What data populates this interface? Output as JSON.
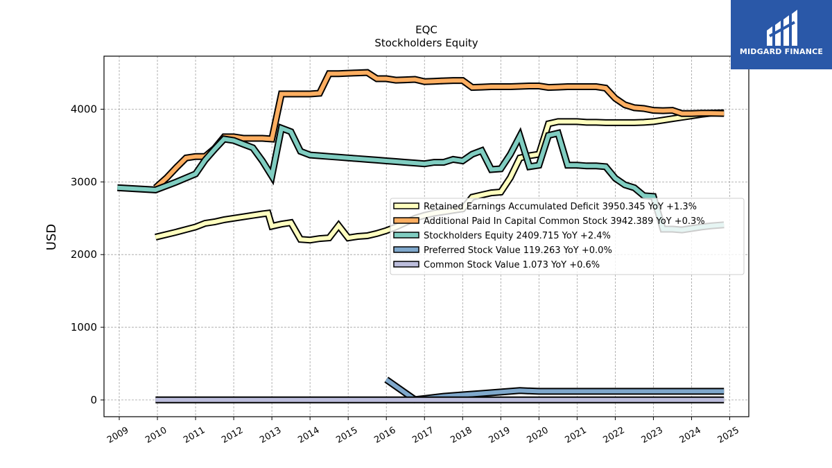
{
  "brand": {
    "name": "MIDGARD FINANCE",
    "color": "#2a58a8",
    "icon": "midgard-logo-icon"
  },
  "chart_data": {
    "type": "line",
    "title": "EQC",
    "subtitle": "Stockholders  Equity",
    "ylabel": "USD",
    "xlabel": "",
    "xlim": [
      2008.6,
      2025.5
    ],
    "ylim": [
      -230,
      4730
    ],
    "yticks": [
      0,
      1000,
      2000,
      3000,
      4000
    ],
    "xticks": [
      "2009",
      "2010",
      "2011",
      "2012",
      "2013",
      "2014",
      "2015",
      "2016",
      "2017",
      "2018",
      "2019",
      "2020",
      "2021",
      "2022",
      "2023",
      "2024",
      "2025"
    ],
    "grid": true,
    "legend_position": "center-right",
    "series": [
      {
        "name": "Retained Earnings Accumulated Deficit",
        "legend": "Retained Earnings Accumulated Deficit  3950.345 YoY +1.3%",
        "color": "#ffffbf",
        "x": [
          2009.95,
          2010.5,
          2011,
          2011.25,
          2011.5,
          2011.75,
          2012,
          2012.25,
          2012.5,
          2012.75,
          2012.9,
          2013.0,
          2013.25,
          2013.5,
          2013.75,
          2014.0,
          2014.25,
          2014.5,
          2014.75,
          2015.0,
          2015.25,
          2015.5,
          2015.75,
          2016.0,
          2016.25,
          2016.5,
          2016.75,
          2017.0,
          2017.25,
          2017.5,
          2017.75,
          2018.0,
          2018.25,
          2018.5,
          2018.75,
          2019.0,
          2019.25,
          2019.5,
          2019.75,
          2020.0,
          2020.25,
          2020.5,
          2020.75,
          2021.0,
          2021.25,
          2021.5,
          2021.75,
          2022.0,
          2022.25,
          2022.5,
          2022.75,
          2023.0,
          2023.25,
          2023.5,
          2023.75,
          2024.0,
          2024.25,
          2024.5,
          2024.85
        ],
        "y": [
          2240,
          2310,
          2380,
          2430,
          2450,
          2480,
          2500,
          2520,
          2540,
          2560,
          2570,
          2390,
          2420,
          2440,
          2210,
          2200,
          2220,
          2230,
          2400,
          2230,
          2250,
          2260,
          2290,
          2330,
          2380,
          2440,
          2500,
          2540,
          2570,
          2590,
          2610,
          2630,
          2790,
          2820,
          2850,
          2860,
          3060,
          3330,
          3360,
          3380,
          3800,
          3830,
          3830,
          3830,
          3820,
          3820,
          3815,
          3815,
          3815,
          3815,
          3820,
          3830,
          3850,
          3870,
          3890,
          3910,
          3930,
          3945,
          3950.345
        ]
      },
      {
        "name": "Additional Paid In Capital Common Stock",
        "legend": "Additional Paid In Capital Common Stock  3942.389 YoY +0.3%",
        "color": "#fdae61",
        "x": [
          2009.95,
          2010.25,
          2010.5,
          2010.75,
          2011,
          2011.25,
          2011.5,
          2011.75,
          2012,
          2012.25,
          2012.5,
          2012.75,
          2013.0,
          2013.25,
          2013.5,
          2013.75,
          2014.0,
          2014.25,
          2014.5,
          2014.75,
          2015.0,
          2015.25,
          2015.5,
          2015.75,
          2016.0,
          2016.25,
          2016.5,
          2016.75,
          2017.0,
          2017.25,
          2017.5,
          2017.75,
          2018.0,
          2018.25,
          2018.5,
          2018.75,
          2019.0,
          2019.25,
          2019.5,
          2019.75,
          2020.0,
          2020.25,
          2020.5,
          2020.75,
          2021.0,
          2021.25,
          2021.5,
          2021.75,
          2022.0,
          2022.25,
          2022.5,
          2022.75,
          2023.0,
          2023.25,
          2023.5,
          2023.75,
          2024.0,
          2024.25,
          2024.5,
          2024.85
        ],
        "y": [
          2920,
          3060,
          3200,
          3330,
          3350,
          3350,
          3460,
          3620,
          3620,
          3600,
          3600,
          3600,
          3590,
          4210,
          4210,
          4210,
          4210,
          4220,
          4490,
          4490,
          4495,
          4500,
          4505,
          4420,
          4420,
          4400,
          4405,
          4410,
          4380,
          4385,
          4390,
          4395,
          4395,
          4300,
          4305,
          4310,
          4310,
          4310,
          4315,
          4320,
          4320,
          4300,
          4305,
          4310,
          4310,
          4310,
          4310,
          4290,
          4150,
          4060,
          4020,
          4010,
          3985,
          3980,
          3985,
          3940,
          3940,
          3945,
          3945,
          3942.389
        ]
      },
      {
        "name": "Stockholders Equity",
        "legend": "Stockholders Equity  2409.715 YoY +2.4%",
        "color": "#80cdc1",
        "x": [
          2008.95,
          2009.95,
          2010.5,
          2011,
          2011.25,
          2011.5,
          2011.75,
          2012,
          2012.25,
          2012.5,
          2012.75,
          2013.0,
          2013.25,
          2013.5,
          2013.75,
          2014.0,
          2014.25,
          2014.5,
          2014.75,
          2015.0,
          2015.25,
          2015.5,
          2015.75,
          2016.0,
          2016.25,
          2016.5,
          2016.75,
          2017.0,
          2017.25,
          2017.5,
          2017.75,
          2018.0,
          2018.25,
          2018.5,
          2018.75,
          2019.0,
          2019.25,
          2019.5,
          2019.75,
          2020.0,
          2020.25,
          2020.5,
          2020.75,
          2021.0,
          2021.25,
          2021.5,
          2021.75,
          2022.0,
          2022.25,
          2022.5,
          2022.75,
          2023.0,
          2023.25,
          2023.5,
          2023.75,
          2024.0,
          2024.25,
          2024.5,
          2024.85
        ],
        "y": [
          2920,
          2890,
          3000,
          3110,
          3300,
          3450,
          3590,
          3570,
          3520,
          3470,
          3290,
          3080,
          3740,
          3690,
          3420,
          3370,
          3360,
          3350,
          3340,
          3330,
          3320,
          3310,
          3300,
          3290,
          3280,
          3270,
          3260,
          3250,
          3270,
          3270,
          3310,
          3290,
          3380,
          3430,
          3170,
          3180,
          3380,
          3630,
          3210,
          3230,
          3640,
          3670,
          3230,
          3230,
          3220,
          3220,
          3210,
          3050,
          2960,
          2920,
          2810,
          2800,
          2350,
          2350,
          2340,
          2360,
          2380,
          2395,
          2409.715
        ]
      },
      {
        "name": "Preferred Stock Value",
        "legend": "Preferred Stock Value  119.263 YoY +0.0%",
        "color": "#7fa8cc",
        "x": [
          2016.0,
          2016.75,
          2017.0,
          2017.5,
          2018.0,
          2018.5,
          2019.0,
          2019.5,
          2020.0,
          2020.5,
          2021.0,
          2021.5,
          2022.0,
          2022.5,
          2023.0,
          2023.5,
          2024.0,
          2024.5,
          2024.85
        ],
        "y": [
          280,
          5,
          20,
          50,
          70,
          90,
          110,
          130,
          119,
          119,
          119,
          119,
          119,
          119,
          119,
          119,
          119,
          119,
          119.263
        ]
      },
      {
        "name": "Common Stock Value",
        "legend": "Common Stock Value  1.073 YoY +0.6%",
        "color": "#bcbddc",
        "x": [
          2009.95,
          2024.85
        ],
        "y": [
          1.0,
          1.073
        ]
      }
    ]
  }
}
